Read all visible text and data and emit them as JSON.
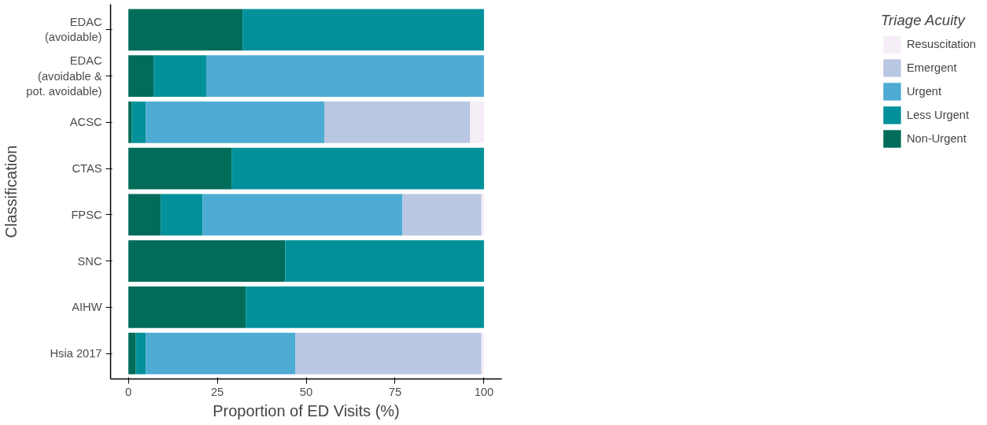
{
  "chart_data": {
    "type": "bar",
    "orientation": "horizontal",
    "stacked": true,
    "xlabel": "Proportion of ED Visits (%)",
    "ylabel": "Classification",
    "legend_title": "Triage Acuity",
    "legend": "right",
    "grid": false,
    "categories": [
      "EDAC\n(avoidable)",
      "EDAC\n(avoidable &\npot. avoidable)",
      "ACSC",
      "CTAS",
      "FPSC",
      "SNC",
      "AIHW",
      "Hsia 2017"
    ],
    "xlim": [
      -5,
      105
    ],
    "xticks": [
      0,
      25,
      50,
      75,
      100
    ],
    "series": [
      {
        "name": "Non-Urgent",
        "color": "#016c59",
        "values": [
          32.1,
          7.1,
          1.0,
          29.0,
          9.1,
          44.1,
          33.0,
          2.1
        ]
      },
      {
        "name": "Less Urgent",
        "color": "#02919a",
        "values": [
          67.9,
          14.8,
          3.9,
          71.0,
          11.8,
          55.9,
          67.0,
          2.8
        ]
      },
      {
        "name": "Urgent",
        "color": "#4eabd3",
        "values": [
          0,
          78.1,
          50.2,
          0,
          56.2,
          0,
          0,
          42.1
        ]
      },
      {
        "name": "Emergent",
        "color": "#b9c7e2",
        "values": [
          0,
          0,
          41.0,
          0,
          22.2,
          0,
          0,
          52.3
        ]
      },
      {
        "name": "Resuscitation",
        "color": "#f6eef7",
        "values": [
          0,
          0,
          3.9,
          0,
          0.7,
          0,
          0,
          0.7
        ]
      }
    ]
  }
}
